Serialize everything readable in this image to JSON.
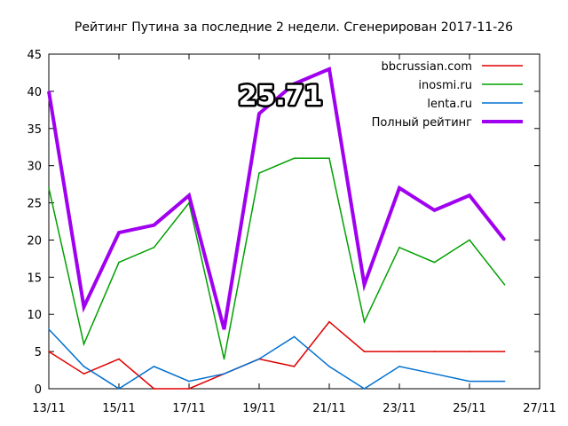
{
  "chart_data": {
    "type": "line",
    "title": "Рейтинг Путина за последние 2 недели. Сгенерирован 2017-11-26",
    "xlabel": "",
    "ylabel": "",
    "x": [
      "13/11",
      "14/11",
      "15/11",
      "16/11",
      "17/11",
      "18/11",
      "19/11",
      "20/11",
      "21/11",
      "22/11",
      "23/11",
      "24/11",
      "25/11",
      "26/11"
    ],
    "x_ticks": [
      "13/11",
      "15/11",
      "17/11",
      "19/11",
      "21/11",
      "23/11",
      "25/11",
      "27/11"
    ],
    "y_ticks": [
      "0",
      "5",
      "10",
      "15",
      "20",
      "25",
      "30",
      "35",
      "40",
      "45"
    ],
    "xlim_days": 14,
    "ylim": [
      0,
      45
    ],
    "grid": false,
    "legend_position": "top-right",
    "series": [
      {
        "name": "bbcrussian.com",
        "color": "#e00000",
        "values": [
          5,
          2,
          4,
          0,
          0,
          2,
          4,
          3,
          9,
          5,
          5,
          5,
          5,
          5
        ]
      },
      {
        "name": "inosmi.ru",
        "color": "#00a000",
        "values": [
          27,
          6,
          17,
          19,
          25,
          4,
          29,
          31,
          31,
          9,
          19,
          17,
          20,
          14
        ]
      },
      {
        "name": "lenta.ru",
        "color": "#0070d0",
        "values": [
          8,
          3,
          0,
          3,
          1,
          2,
          4,
          7,
          3,
          0,
          3,
          2,
          1,
          1
        ]
      },
      {
        "name": "Полный рейтинг",
        "color": "#a000f0",
        "values": [
          40,
          11,
          21,
          22,
          26,
          8,
          37,
          41,
          43,
          14,
          27,
          24,
          26,
          20
        ]
      }
    ],
    "annotation": "25.71"
  }
}
